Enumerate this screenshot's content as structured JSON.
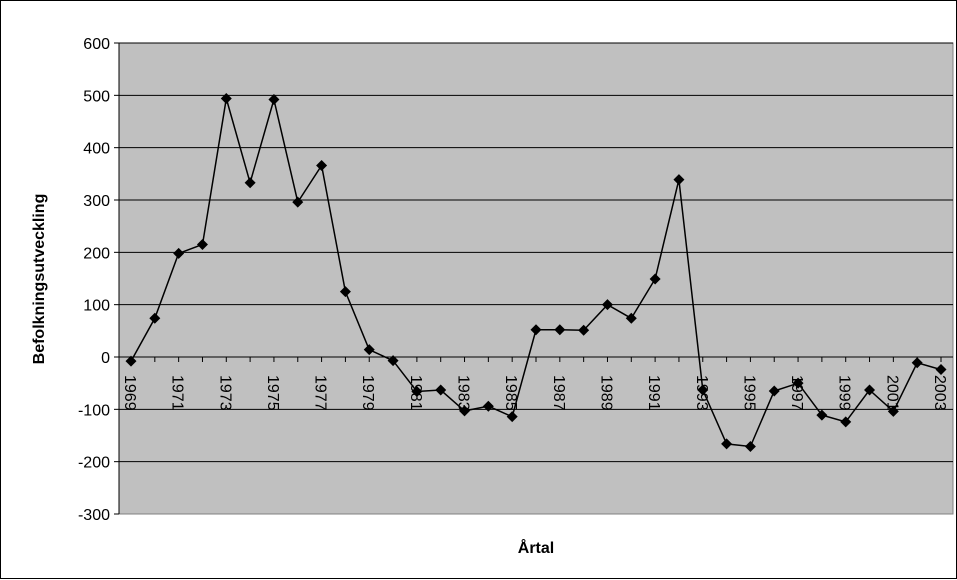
{
  "chart_data": {
    "type": "line",
    "title": "",
    "xlabel": "Årtal",
    "ylabel": "Befolkningsutveckling",
    "ylim": [
      -300,
      600
    ],
    "yticks": [
      -300,
      -200,
      -100,
      0,
      100,
      200,
      300,
      400,
      500,
      600
    ],
    "grid": true,
    "legend": "none",
    "colors": {
      "plot_background": "#c0c0c0",
      "line": "#000000",
      "marker": "#000000",
      "gridline": "#000000"
    },
    "x_tick_labels": [
      "1969",
      "1971",
      "1973",
      "1975",
      "1977",
      "1979",
      "1981",
      "1983",
      "1985",
      "1987",
      "1989",
      "1991",
      "1993",
      "1995",
      "1997",
      "1999",
      "2001",
      "2003"
    ],
    "x": [
      1969,
      1970,
      1971,
      1972,
      1973,
      1974,
      1975,
      1976,
      1977,
      1978,
      1979,
      1980,
      1981,
      1982,
      1983,
      1984,
      1985,
      1986,
      1987,
      1988,
      1989,
      1990,
      1991,
      1992,
      1993,
      1994,
      1995,
      1996,
      1997,
      1998,
      1999,
      2000,
      2001,
      2002,
      2003
    ],
    "series": [
      {
        "values": [
          -8,
          74,
          198,
          215,
          494,
          333,
          492,
          296,
          366,
          125,
          14,
          -7,
          -66,
          -63,
          -103,
          -94,
          -114,
          52,
          52,
          51,
          100,
          74,
          149,
          339,
          -63,
          -166,
          -171,
          -65,
          -50,
          -111,
          -124,
          -63,
          -104,
          -11,
          -24
        ]
      }
    ]
  }
}
